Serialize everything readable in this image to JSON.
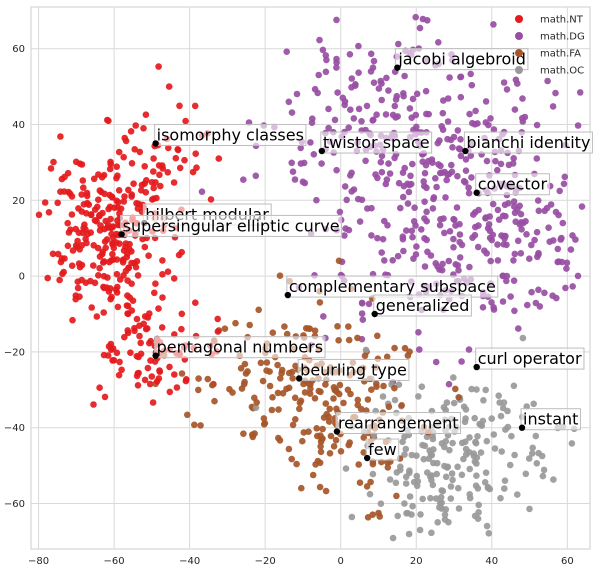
{
  "chart_data": {
    "type": "scatter",
    "title": "",
    "xlabel": "",
    "ylabel": "",
    "xlim": [
      -82,
      66
    ],
    "ylim": [
      -72,
      71
    ],
    "xticks": [
      -80,
      -60,
      -40,
      -20,
      0,
      20,
      40,
      60
    ],
    "yticks": [
      -60,
      -40,
      -20,
      0,
      20,
      40,
      60
    ],
    "xtick_labels": [
      "−80",
      "−60",
      "−40",
      "−20",
      "0",
      "20",
      "40",
      "60"
    ],
    "ytick_labels": [
      "−60",
      "−40",
      "−20",
      "0",
      "20",
      "40",
      "60"
    ],
    "grid": true,
    "legend_position": "top-right",
    "series": [
      {
        "name": "math.NT",
        "color": "#e41a1c",
        "seed": 11,
        "clusters": [
          {
            "cx": -62,
            "cy": 12,
            "sx": 8,
            "sy": 11,
            "n": 260
          },
          {
            "cx": -52,
            "cy": -18,
            "sx": 9,
            "sy": 7,
            "n": 90
          },
          {
            "cx": -45,
            "cy": 30,
            "sx": 8,
            "sy": 8,
            "n": 40
          }
        ]
      },
      {
        "name": "math.DG",
        "color": "#984ea3",
        "seed": 23,
        "clusters": [
          {
            "cx": 22,
            "cy": 22,
            "sx": 18,
            "sy": 18,
            "n": 380
          },
          {
            "cx": 48,
            "cy": 8,
            "sx": 9,
            "sy": 10,
            "n": 90
          },
          {
            "cx": 8,
            "cy": 45,
            "sx": 10,
            "sy": 10,
            "n": 70
          }
        ]
      },
      {
        "name": "math.FA",
        "color": "#a65628",
        "seed": 37,
        "clusters": [
          {
            "cx": -8,
            "cy": -28,
            "sx": 14,
            "sy": 11,
            "n": 200
          },
          {
            "cx": 5,
            "cy": -50,
            "sx": 8,
            "sy": 8,
            "n": 40
          }
        ]
      },
      {
        "name": "math.OC",
        "color": "#999999",
        "seed": 51,
        "clusters": [
          {
            "cx": 30,
            "cy": -45,
            "sx": 12,
            "sy": 10,
            "n": 180
          },
          {
            "cx": 22,
            "cy": -60,
            "sx": 8,
            "sy": 6,
            "n": 40
          }
        ]
      }
    ],
    "annotations": [
      {
        "text": "jacobi algebroid",
        "x": 15,
        "y": 55
      },
      {
        "text": "isomorphy classes",
        "x": -49,
        "y": 35
      },
      {
        "text": "twistor space",
        "x": -5,
        "y": 33
      },
      {
        "text": "bianchi identity",
        "x": 33,
        "y": 33
      },
      {
        "text": "covector",
        "x": 36,
        "y": 22
      },
      {
        "text": "hilbert modular",
        "x": -52,
        "y": 14
      },
      {
        "text": "supersingular elliptic curve",
        "x": -58,
        "y": 11
      },
      {
        "text": "complementary subspace",
        "x": -14,
        "y": -5
      },
      {
        "text": "generalized",
        "x": 9,
        "y": -10
      },
      {
        "text": "pentagonal numbers",
        "x": -49,
        "y": -21
      },
      {
        "text": "curl operator",
        "x": 36,
        "y": -24
      },
      {
        "text": "beurling type",
        "x": -11,
        "y": -27
      },
      {
        "text": "instant",
        "x": 48,
        "y": -40
      },
      {
        "text": "rearrangement",
        "x": -1,
        "y": -41
      },
      {
        "text": "few",
        "x": 7,
        "y": -48
      }
    ]
  }
}
